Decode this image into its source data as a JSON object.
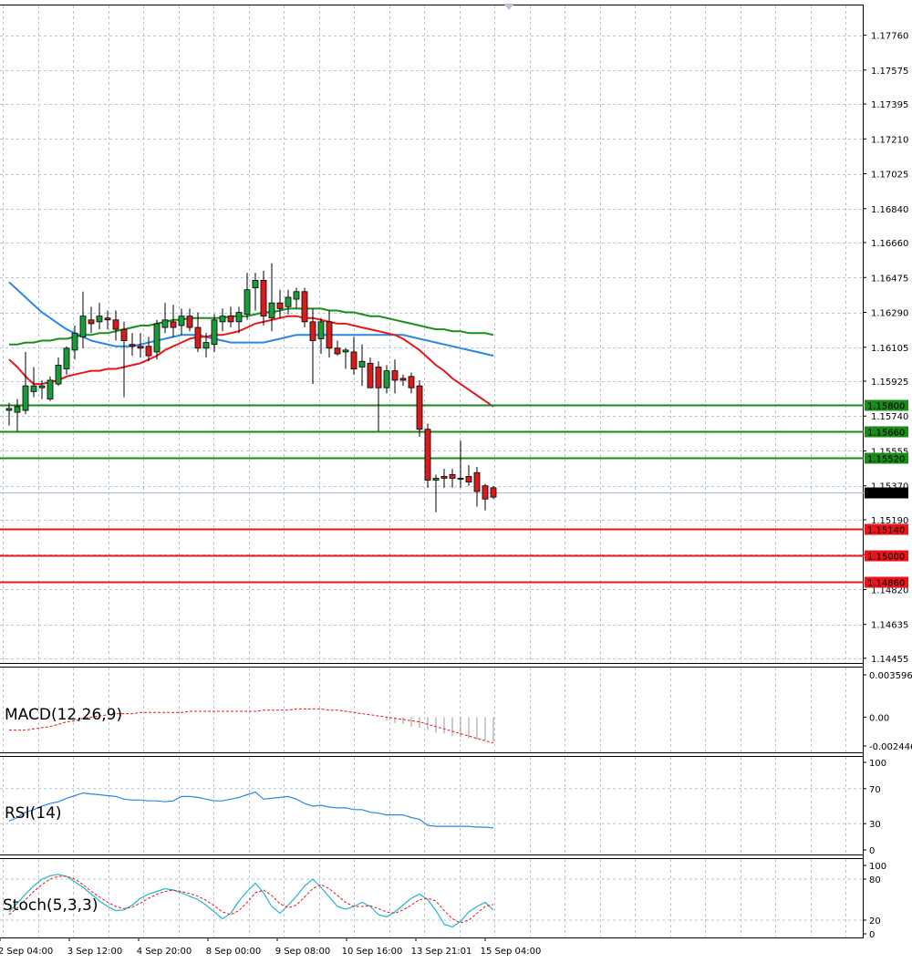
{
  "colors": {
    "background": "#ffffff",
    "grid": "#b8c6d6",
    "candle_up": "#1a9a3a",
    "candle_down": "#d81b1b",
    "ma_fast": "#e8161b",
    "ma_mid": "#1b8e1b",
    "ma_slow": "#2a87e6",
    "support": "#e8161b",
    "resistance": "#1a8a1a",
    "current_price_bg": "#000000",
    "macd_signal": "#e8161b",
    "macd_hist": "#9a9a9a",
    "rsi_line": "#2a87e6",
    "stoch_main": "#1fb8c9",
    "stoch_signal": "#e8161b"
  },
  "chart_data": [
    {
      "type": "candlestick",
      "title": "",
      "price_axis_ticks": [
        "1.17760",
        "1.17575",
        "1.17395",
        "1.17210",
        "1.17025",
        "1.16840",
        "1.16660",
        "1.16475",
        "1.16290",
        "1.16105",
        "1.15925",
        "1.15740",
        "1.15555",
        "1.15370",
        "1.15190",
        "1.15005",
        "1.14820",
        "1.14635",
        "1.14455"
      ],
      "time_axis_labels": [
        "2 Sep 04:00",
        "3 Sep 12:00",
        "4 Sep 20:00",
        "8 Sep 00:00",
        "9 Sep 08:00",
        "10 Sep 16:00",
        "13 Sep 21:01",
        "15 Sep 04:00"
      ],
      "ylim": [
        1.1444,
        1.1785
      ],
      "candles": [
        {
          "o": 1.1577,
          "h": 1.1581,
          "l": 1.1569,
          "c": 1.1578
        },
        {
          "o": 1.1576,
          "h": 1.1583,
          "l": 1.1566,
          "c": 1.1579
        },
        {
          "o": 1.1577,
          "h": 1.1608,
          "l": 1.1575,
          "c": 1.159
        },
        {
          "o": 1.1587,
          "h": 1.16,
          "l": 1.1584,
          "c": 1.159
        },
        {
          "o": 1.1589,
          "h": 1.1593,
          "l": 1.1583,
          "c": 1.159
        },
        {
          "o": 1.1583,
          "h": 1.1595,
          "l": 1.1582,
          "c": 1.1593
        },
        {
          "o": 1.1591,
          "h": 1.1605,
          "l": 1.159,
          "c": 1.1601
        },
        {
          "o": 1.1599,
          "h": 1.1611,
          "l": 1.1596,
          "c": 1.161
        },
        {
          "o": 1.1609,
          "h": 1.1622,
          "l": 1.1604,
          "c": 1.1618
        },
        {
          "o": 1.1616,
          "h": 1.164,
          "l": 1.161,
          "c": 1.1627
        },
        {
          "o": 1.1625,
          "h": 1.1632,
          "l": 1.1618,
          "c": 1.1623
        },
        {
          "o": 1.1624,
          "h": 1.1634,
          "l": 1.162,
          "c": 1.1627
        },
        {
          "o": 1.1626,
          "h": 1.163,
          "l": 1.162,
          "c": 1.1625
        },
        {
          "o": 1.1625,
          "h": 1.163,
          "l": 1.1614,
          "c": 1.162
        },
        {
          "o": 1.162,
          "h": 1.1624,
          "l": 1.1584,
          "c": 1.1614
        },
        {
          "o": 1.1612,
          "h": 1.1618,
          "l": 1.1606,
          "c": 1.1611
        },
        {
          "o": 1.1611,
          "h": 1.1618,
          "l": 1.1605,
          "c": 1.161
        },
        {
          "o": 1.1611,
          "h": 1.1616,
          "l": 1.1603,
          "c": 1.1606
        },
        {
          "o": 1.1608,
          "h": 1.1625,
          "l": 1.1604,
          "c": 1.1623
        },
        {
          "o": 1.1621,
          "h": 1.1634,
          "l": 1.1618,
          "c": 1.1625
        },
        {
          "o": 1.1624,
          "h": 1.1633,
          "l": 1.1616,
          "c": 1.1621
        },
        {
          "o": 1.1622,
          "h": 1.1631,
          "l": 1.1617,
          "c": 1.1627
        },
        {
          "o": 1.1627,
          "h": 1.1631,
          "l": 1.1619,
          "c": 1.1621
        },
        {
          "o": 1.1621,
          "h": 1.1629,
          "l": 1.1608,
          "c": 1.161
        },
        {
          "o": 1.161,
          "h": 1.1618,
          "l": 1.1605,
          "c": 1.1613
        },
        {
          "o": 1.1612,
          "h": 1.1628,
          "l": 1.1608,
          "c": 1.1625
        },
        {
          "o": 1.1624,
          "h": 1.1631,
          "l": 1.1619,
          "c": 1.1627
        },
        {
          "o": 1.1627,
          "h": 1.1632,
          "l": 1.1621,
          "c": 1.1624
        },
        {
          "o": 1.1624,
          "h": 1.1632,
          "l": 1.1618,
          "c": 1.1629
        },
        {
          "o": 1.1628,
          "h": 1.165,
          "l": 1.1625,
          "c": 1.1641
        },
        {
          "o": 1.1642,
          "h": 1.165,
          "l": 1.163,
          "c": 1.1646
        },
        {
          "o": 1.1646,
          "h": 1.1651,
          "l": 1.1622,
          "c": 1.1627
        },
        {
          "o": 1.1626,
          "h": 1.1655,
          "l": 1.1619,
          "c": 1.1634
        },
        {
          "o": 1.1634,
          "h": 1.1641,
          "l": 1.1626,
          "c": 1.1631
        },
        {
          "o": 1.1632,
          "h": 1.1641,
          "l": 1.1628,
          "c": 1.1637
        },
        {
          "o": 1.1636,
          "h": 1.1642,
          "l": 1.1631,
          "c": 1.164
        },
        {
          "o": 1.164,
          "h": 1.1642,
          "l": 1.1621,
          "c": 1.1624
        },
        {
          "o": 1.1624,
          "h": 1.1631,
          "l": 1.1591,
          "c": 1.1614
        },
        {
          "o": 1.1615,
          "h": 1.1626,
          "l": 1.1607,
          "c": 1.1624
        },
        {
          "o": 1.1624,
          "h": 1.163,
          "l": 1.1605,
          "c": 1.161
        },
        {
          "o": 1.161,
          "h": 1.1614,
          "l": 1.1606,
          "c": 1.1607
        },
        {
          "o": 1.1608,
          "h": 1.161,
          "l": 1.1599,
          "c": 1.1609
        },
        {
          "o": 1.1608,
          "h": 1.1616,
          "l": 1.1596,
          "c": 1.1599
        },
        {
          "o": 1.16,
          "h": 1.1612,
          "l": 1.159,
          "c": 1.1603
        },
        {
          "o": 1.1602,
          "h": 1.1605,
          "l": 1.159,
          "c": 1.1589
        },
        {
          "o": 1.16,
          "h": 1.1603,
          "l": 1.1566,
          "c": 1.1589
        },
        {
          "o": 1.1589,
          "h": 1.1601,
          "l": 1.1586,
          "c": 1.1598
        },
        {
          "o": 1.1598,
          "h": 1.1604,
          "l": 1.1586,
          "c": 1.1593
        },
        {
          "o": 1.1594,
          "h": 1.1596,
          "l": 1.159,
          "c": 1.1593
        },
        {
          "o": 1.1595,
          "h": 1.1597,
          "l": 1.1586,
          "c": 1.1589
        },
        {
          "o": 1.159,
          "h": 1.1593,
          "l": 1.1563,
          "c": 1.1567
        },
        {
          "o": 1.1567,
          "h": 1.157,
          "l": 1.1536,
          "c": 1.154
        },
        {
          "o": 1.154,
          "h": 1.1543,
          "l": 1.1523,
          "c": 1.1541
        },
        {
          "o": 1.1542,
          "h": 1.1546,
          "l": 1.1536,
          "c": 1.1541
        },
        {
          "o": 1.1543,
          "h": 1.1546,
          "l": 1.1536,
          "c": 1.1541
        },
        {
          "o": 1.1541,
          "h": 1.1561,
          "l": 1.1536,
          "c": 1.1541
        },
        {
          "o": 1.1542,
          "h": 1.1548,
          "l": 1.1537,
          "c": 1.1539
        },
        {
          "o": 1.1544,
          "h": 1.1547,
          "l": 1.1526,
          "c": 1.1534
        },
        {
          "o": 1.1537,
          "h": 1.1538,
          "l": 1.1524,
          "c": 1.153
        },
        {
          "o": 1.1536,
          "h": 1.1537,
          "l": 1.153,
          "c": 1.1531
        }
      ],
      "moving_averages": [
        {
          "color_key": "ma_slow",
          "values": [
            1.1645,
            1.1641,
            1.1637,
            1.1633,
            1.1629,
            1.1626,
            1.1623,
            1.162,
            1.1618,
            1.1616,
            1.1614,
            1.1613,
            1.1612,
            1.1611,
            1.1611,
            1.1611,
            1.1612,
            1.1613,
            1.1614,
            1.1615,
            1.1616,
            1.1617,
            1.1617,
            1.1617,
            1.1616,
            1.1615,
            1.1614,
            1.1613,
            1.1613,
            1.1613,
            1.1613,
            1.1613,
            1.1614,
            1.1615,
            1.1616,
            1.1617,
            1.1617,
            1.1617,
            1.1617,
            1.1617,
            1.1617,
            1.1617,
            1.1617,
            1.1617,
            1.1617,
            1.1617,
            1.1617,
            1.1617,
            1.1617,
            1.1616,
            1.1615,
            1.1614,
            1.1613,
            1.1612,
            1.1611,
            1.161,
            1.1609,
            1.1608,
            1.1607,
            1.1606
          ]
        },
        {
          "color_key": "ma_mid",
          "values": [
            1.1612,
            1.1612,
            1.1613,
            1.1613,
            1.1614,
            1.1614,
            1.1615,
            1.1615,
            1.1616,
            1.1617,
            1.1617,
            1.1618,
            1.1618,
            1.1619,
            1.162,
            1.1621,
            1.1622,
            1.1622,
            1.1623,
            1.1624,
            1.1625,
            1.1625,
            1.1626,
            1.1626,
            1.1626,
            1.1626,
            1.1626,
            1.1627,
            1.1627,
            1.1627,
            1.1628,
            1.1629,
            1.1629,
            1.163,
            1.1631,
            1.1631,
            1.1631,
            1.1631,
            1.1631,
            1.163,
            1.163,
            1.1629,
            1.1629,
            1.1628,
            1.1627,
            1.1627,
            1.1626,
            1.1625,
            1.1624,
            1.1623,
            1.1622,
            1.1621,
            1.162,
            1.162,
            1.1619,
            1.1619,
            1.1618,
            1.1618,
            1.1618,
            1.1617
          ]
        },
        {
          "color_key": "ma_fast",
          "values": [
            1.1604,
            1.16,
            1.1595,
            1.1591,
            1.1591,
            1.1592,
            1.1593,
            1.1595,
            1.1596,
            1.1597,
            1.1598,
            1.1598,
            1.1599,
            1.1599,
            1.16,
            1.1601,
            1.1602,
            1.1604,
            1.1606,
            1.1609,
            1.1611,
            1.1613,
            1.1615,
            1.1616,
            1.1616,
            1.1617,
            1.1617,
            1.1618,
            1.1619,
            1.1621,
            1.1623,
            1.1624,
            1.1625,
            1.1626,
            1.1627,
            1.1627,
            1.1626,
            1.1626,
            1.1625,
            1.1624,
            1.1623,
            1.1623,
            1.1622,
            1.1621,
            1.162,
            1.1619,
            1.1618,
            1.1617,
            1.1615,
            1.1612,
            1.1609,
            1.1605,
            1.1601,
            1.1598,
            1.1594,
            1.1591,
            1.1588,
            1.1585,
            1.1582,
            1.1579
          ]
        }
      ],
      "horizontal_levels": [
        {
          "label": "1.15800",
          "value": 1.158,
          "color_key": "resistance"
        },
        {
          "label": "1.15660",
          "value": 1.1566,
          "color_key": "resistance"
        },
        {
          "label": "1.15520",
          "value": 1.1552,
          "color_key": "resistance"
        },
        {
          "label": "1.15140",
          "value": 1.1514,
          "color_key": "support"
        },
        {
          "label": "1.15000",
          "value": 1.15,
          "color_key": "support"
        },
        {
          "label": "1.14860",
          "value": 1.1486,
          "color_key": "support"
        }
      ],
      "current_price": {
        "label": "1.15334",
        "value": 1.15334
      }
    },
    {
      "type": "line",
      "name": "MACD(12,26,9)",
      "label": "MACD(12,26,9)",
      "axis_ticks": [
        "0.003596",
        "0.00",
        "-0.002446"
      ],
      "ylim": [
        -0.002446,
        0.003596
      ],
      "signal": [
        -0.0011,
        -0.0011,
        -0.0011,
        -0.001,
        -0.0009,
        -0.0008,
        -0.0006,
        -0.0004,
        -0.0003,
        -0.0001,
        0.0,
        0.0001,
        0.0002,
        0.0003,
        0.0003,
        0.0003,
        0.0004,
        0.0004,
        0.0004,
        0.0004,
        0.0004,
        0.0004,
        0.0005,
        0.0005,
        0.0005,
        0.0005,
        0.0005,
        0.0005,
        0.0005,
        0.0005,
        0.0005,
        0.0006,
        0.0006,
        0.0006,
        0.0006,
        0.0007,
        0.0007,
        0.0007,
        0.0007,
        0.0006,
        0.0006,
        0.0005,
        0.0004,
        0.0003,
        0.0002,
        0.0001,
        0.0,
        -0.0001,
        -0.0002,
        -0.0003,
        -0.0004,
        -0.0006,
        -0.0008,
        -0.001,
        -0.0012,
        -0.0014,
        -0.0016,
        -0.0018,
        -0.002,
        -0.0022
      ],
      "histogram_values": [
        0,
        0,
        0,
        0,
        0,
        0,
        0,
        0,
        0,
        0,
        0,
        0,
        0,
        0,
        0,
        0,
        0,
        0,
        0,
        0,
        0,
        0,
        0,
        0,
        0,
        0,
        0,
        0,
        0,
        0,
        0,
        0,
        0,
        0,
        0,
        0,
        0,
        0,
        0,
        0,
        0,
        0,
        0,
        0,
        0,
        0,
        -0.0003,
        -0.0005,
        -0.0006,
        -0.0008,
        -0.0009,
        -0.0011,
        -0.0013,
        -0.0014,
        -0.0016,
        -0.0017,
        -0.0018,
        -0.0019,
        -0.002,
        -0.0021
      ]
    },
    {
      "type": "line",
      "name": "RSI(14)",
      "label": "RSI(14)",
      "axis_ticks": [
        "100",
        "70",
        "30",
        "0"
      ],
      "ylim": [
        0,
        100
      ],
      "values": [
        33,
        37,
        43,
        46,
        50,
        53,
        55,
        59,
        62,
        65,
        64,
        63,
        62,
        61,
        58,
        57,
        57,
        56,
        56,
        55,
        56,
        61,
        61,
        60,
        58,
        56,
        56,
        58,
        60,
        63,
        66,
        58,
        59,
        60,
        61,
        58,
        53,
        50,
        51,
        49,
        48,
        48,
        46,
        46,
        43,
        42,
        40,
        40,
        40,
        37,
        35,
        28,
        27,
        27,
        27,
        27,
        27,
        26,
        26,
        25
      ]
    },
    {
      "type": "line",
      "name": "Stoch(5,3,3)",
      "label": "Stoch(5,3,3)",
      "axis_ticks": [
        "100",
        "80",
        "20",
        "0"
      ],
      "ylim": [
        0,
        100
      ],
      "main": [
        32,
        45,
        58,
        70,
        80,
        85,
        87,
        84,
        76,
        68,
        58,
        48,
        40,
        34,
        35,
        42,
        52,
        58,
        62,
        66,
        64,
        60,
        55,
        50,
        42,
        32,
        22,
        30,
        48,
        62,
        74,
        60,
        40,
        30,
        42,
        55,
        70,
        80,
        68,
        54,
        40,
        36,
        40,
        46,
        40,
        28,
        25,
        32,
        42,
        52,
        58,
        50,
        34,
        14,
        10,
        18,
        32,
        40,
        46,
        35
      ],
      "signal": [
        28,
        38,
        50,
        62,
        72,
        80,
        84,
        84,
        80,
        72,
        62,
        54,
        46,
        40,
        37,
        39,
        45,
        52,
        58,
        62,
        64,
        62,
        59,
        55,
        49,
        41,
        32,
        28,
        34,
        46,
        60,
        64,
        56,
        44,
        38,
        42,
        54,
        66,
        72,
        66,
        56,
        46,
        40,
        40,
        41,
        37,
        32,
        30,
        35,
        42,
        50,
        52,
        48,
        34,
        22,
        16,
        20,
        30,
        40,
        43
      ]
    }
  ]
}
